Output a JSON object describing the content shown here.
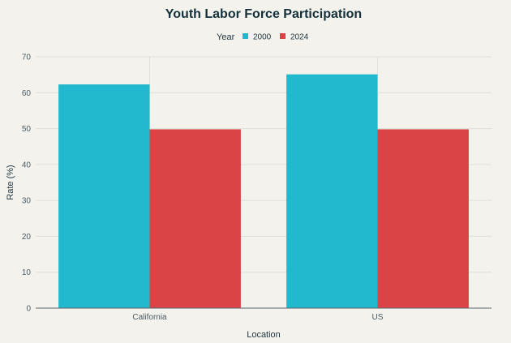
{
  "chart_data": {
    "type": "bar",
    "title": "Youth Labor Force Participation",
    "xlabel": "Location",
    "ylabel": "Rate (%)",
    "categories": [
      "California",
      "US"
    ],
    "series": [
      {
        "name": "2000",
        "values": [
          62.3,
          65.1
        ],
        "color": "#22b8ce"
      },
      {
        "name": "2024",
        "values": [
          49.8,
          49.8
        ],
        "color": "#db4446"
      }
    ],
    "legend": {
      "title": "Year",
      "placement": "top-center"
    },
    "ylim": [
      0,
      70
    ],
    "yticks": [
      0,
      10,
      20,
      30,
      40,
      50,
      60,
      70
    ],
    "grid": true
  }
}
